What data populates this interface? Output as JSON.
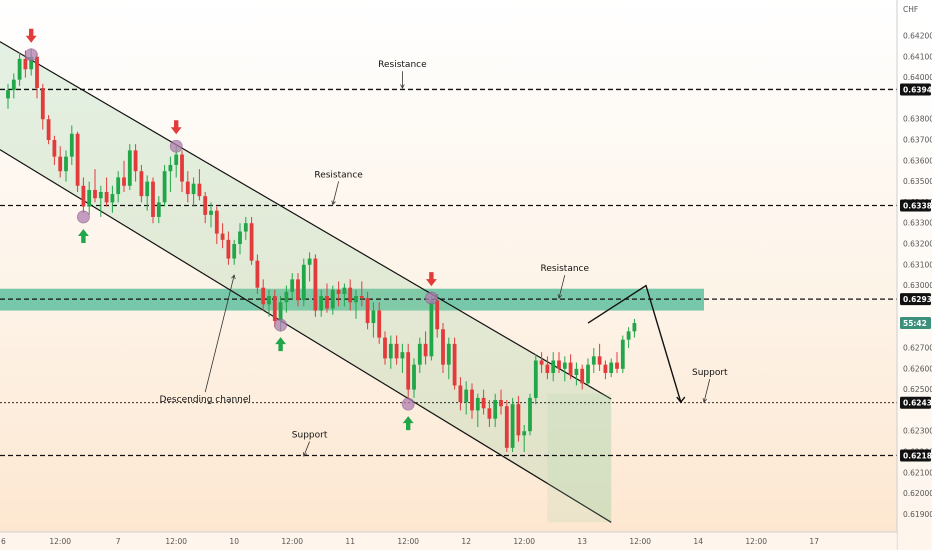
{
  "chart_data": {
    "type": "candlestick",
    "currency": "CHF",
    "y_ticks": [
      "0.64200",
      "0.64100",
      "0.64000",
      "0.63800",
      "0.63700",
      "0.63600",
      "0.63500",
      "0.63400",
      "0.63300",
      "0.63200",
      "0.63100",
      "0.63000",
      "0.62700",
      "0.62600",
      "0.62500",
      "0.62300",
      "0.62200",
      "0.62100",
      "0.62000",
      "0.61900"
    ],
    "y_tick_values": [
      0.642,
      0.641,
      0.64,
      0.638,
      0.637,
      0.636,
      0.635,
      0.634,
      0.633,
      0.632,
      0.631,
      0.63,
      0.627,
      0.626,
      0.625,
      0.623,
      0.622,
      0.621,
      0.62,
      0.619
    ],
    "price_badges": [
      {
        "label": "0.63943",
        "value": 0.63943,
        "style": "level"
      },
      {
        "label": "0.63385",
        "value": 0.63385,
        "style": "level"
      },
      {
        "label": "0.62935",
        "value": 0.62935,
        "style": "level"
      },
      {
        "label": "55:42",
        "value": 0.6282,
        "style": "countdown"
      },
      {
        "label": "0.62437",
        "value": 0.62437,
        "style": "level"
      },
      {
        "label": "0.62183",
        "value": 0.62183,
        "style": "level"
      }
    ],
    "x_ticks": [
      "12:00",
      "7",
      "12:00",
      "10",
      "12:00",
      "11",
      "12:00",
      "12",
      "12:00",
      "13",
      "12:00",
      "14",
      "12:00",
      "17"
    ],
    "x_tick_index": [
      9,
      19,
      29,
      39,
      49,
      59,
      69,
      79,
      89,
      99,
      109,
      119,
      129,
      139
    ],
    "levels": [
      {
        "value": 0.63943,
        "style": "dashed"
      },
      {
        "value": 0.63385,
        "style": "dashed"
      },
      {
        "value": 0.62935,
        "style": "dashed"
      },
      {
        "value": 0.62437,
        "style": "dotted"
      },
      {
        "value": 0.62183,
        "style": "dashed"
      }
    ],
    "zone": {
      "from": 0.6288,
      "to": 0.62985,
      "start_index": 0,
      "end_index": 120,
      "color": "#5fbf9f"
    },
    "annotations": [
      {
        "text": "Resistance",
        "x": 68,
        "y": 0.6405,
        "arrow_to": [
          68,
          0.6395
        ]
      },
      {
        "text": "Resistance",
        "x": 57,
        "y": 0.6352,
        "arrow_to": [
          56,
          0.6339
        ]
      },
      {
        "text": "Resistance",
        "x": 96,
        "y": 0.6307,
        "arrow_to": [
          95,
          0.6294
        ]
      },
      {
        "text": "Descending channel",
        "x": 34,
        "y": 0.6244,
        "arrow_to": [
          39,
          0.6305
        ]
      },
      {
        "text": "Support",
        "x": 52,
        "y": 0.6227,
        "arrow_to": [
          51,
          0.6218
        ]
      },
      {
        "text": "Support",
        "x": 121,
        "y": 0.6257,
        "arrow_to": [
          120,
          0.6244
        ]
      }
    ],
    "channel": {
      "upper": [
        [
          0,
          0.6415
        ],
        [
          100,
          0.6252
        ]
      ],
      "lower": [
        [
          0,
          0.6363
        ],
        [
          100,
          0.6193
        ]
      ]
    },
    "pivots": [
      {
        "index": 4,
        "value": 0.6411,
        "type": "top"
      },
      {
        "index": 13,
        "value": 0.6333,
        "type": "bottom"
      },
      {
        "index": 29,
        "value": 0.6367,
        "type": "top"
      },
      {
        "index": 47,
        "value": 0.6281,
        "type": "bottom"
      },
      {
        "index": 73,
        "value": 0.6294,
        "type": "top"
      },
      {
        "index": 69,
        "value": 0.6243,
        "type": "bottom"
      }
    ],
    "projection": [
      [
        100,
        0.6282
      ],
      [
        110,
        0.63
      ],
      [
        116,
        0.6244
      ]
    ],
    "candles": [
      [
        0.639,
        0.6397,
        0.6385,
        0.6394
      ],
      [
        0.6394,
        0.6402,
        0.639,
        0.6399
      ],
      [
        0.6399,
        0.6412,
        0.6396,
        0.6409
      ],
      [
        0.6409,
        0.6413,
        0.64,
        0.6404
      ],
      [
        0.6404,
        0.6414,
        0.6401,
        0.641
      ],
      [
        0.641,
        0.6412,
        0.639,
        0.6395
      ],
      [
        0.6395,
        0.6397,
        0.6375,
        0.638
      ],
      [
        0.638,
        0.6382,
        0.6368,
        0.637
      ],
      [
        0.637,
        0.6372,
        0.6358,
        0.6362
      ],
      [
        0.6362,
        0.6367,
        0.6352,
        0.6355
      ],
      [
        0.6355,
        0.6365,
        0.635,
        0.6362
      ],
      [
        0.6362,
        0.6377,
        0.6358,
        0.6373
      ],
      [
        0.6373,
        0.6374,
        0.6345,
        0.6348
      ],
      [
        0.6348,
        0.6352,
        0.6335,
        0.6338
      ],
      [
        0.6338,
        0.635,
        0.6334,
        0.6346
      ],
      [
        0.6346,
        0.6356,
        0.634,
        0.6342
      ],
      [
        0.6342,
        0.6348,
        0.6333,
        0.6345
      ],
      [
        0.6345,
        0.6352,
        0.6338,
        0.634
      ],
      [
        0.634,
        0.6348,
        0.6335,
        0.6344
      ],
      [
        0.6344,
        0.6355,
        0.634,
        0.6352
      ],
      [
        0.6352,
        0.636,
        0.6345,
        0.6348
      ],
      [
        0.6348,
        0.6368,
        0.6346,
        0.6365
      ],
      [
        0.6365,
        0.6368,
        0.635,
        0.6355
      ],
      [
        0.6355,
        0.6358,
        0.634,
        0.6343
      ],
      [
        0.6343,
        0.6353,
        0.6336,
        0.635
      ],
      [
        0.635,
        0.6352,
        0.633,
        0.6333
      ],
      [
        0.6333,
        0.6343,
        0.633,
        0.634
      ],
      [
        0.634,
        0.6358,
        0.6338,
        0.6355
      ],
      [
        0.6355,
        0.6362,
        0.6345,
        0.6358
      ],
      [
        0.6358,
        0.6367,
        0.6352,
        0.6363
      ],
      [
        0.6363,
        0.6365,
        0.6345,
        0.635
      ],
      [
        0.635,
        0.6355,
        0.634,
        0.6344
      ],
      [
        0.6344,
        0.6352,
        0.6338,
        0.6349
      ],
      [
        0.6349,
        0.6356,
        0.6341,
        0.6343
      ],
      [
        0.6343,
        0.6345,
        0.633,
        0.6334
      ],
      [
        0.6334,
        0.634,
        0.6328,
        0.6336
      ],
      [
        0.6336,
        0.6338,
        0.632,
        0.6325
      ],
      [
        0.6325,
        0.633,
        0.6318,
        0.6322
      ],
      [
        0.6322,
        0.6326,
        0.631,
        0.6313
      ],
      [
        0.6313,
        0.6322,
        0.631,
        0.632
      ],
      [
        0.632,
        0.633,
        0.6315,
        0.6326
      ],
      [
        0.6326,
        0.6333,
        0.6322,
        0.633
      ],
      [
        0.633,
        0.6333,
        0.631,
        0.6312
      ],
      [
        0.6312,
        0.6315,
        0.6296,
        0.6299
      ],
      [
        0.6299,
        0.6303,
        0.6288,
        0.6291
      ],
      [
        0.6291,
        0.6298,
        0.6285,
        0.6295
      ],
      [
        0.6295,
        0.6298,
        0.628,
        0.6283
      ],
      [
        0.6283,
        0.6295,
        0.6278,
        0.6292
      ],
      [
        0.6292,
        0.63,
        0.6287,
        0.6297
      ],
      [
        0.6297,
        0.6306,
        0.6293,
        0.6303
      ],
      [
        0.6303,
        0.6306,
        0.629,
        0.6293
      ],
      [
        0.6293,
        0.6313,
        0.629,
        0.631
      ],
      [
        0.631,
        0.6316,
        0.6302,
        0.6313
      ],
      [
        0.6313,
        0.6315,
        0.6285,
        0.6288
      ],
      [
        0.6288,
        0.6298,
        0.6285,
        0.6295
      ],
      [
        0.6295,
        0.6301,
        0.6287,
        0.6289
      ],
      [
        0.6289,
        0.63,
        0.6286,
        0.6298
      ],
      [
        0.6298,
        0.6302,
        0.629,
        0.6296
      ],
      [
        0.6296,
        0.6301,
        0.629,
        0.6299
      ],
      [
        0.6299,
        0.6303,
        0.6288,
        0.6292
      ],
      [
        0.6292,
        0.6298,
        0.6284,
        0.6295
      ],
      [
        0.6295,
        0.6302,
        0.629,
        0.6294
      ],
      [
        0.6294,
        0.6297,
        0.6279,
        0.6282
      ],
      [
        0.6282,
        0.6292,
        0.6275,
        0.6288
      ],
      [
        0.6288,
        0.6292,
        0.6272,
        0.6275
      ],
      [
        0.6275,
        0.6278,
        0.6262,
        0.6265
      ],
      [
        0.6265,
        0.6276,
        0.626,
        0.6272
      ],
      [
        0.6272,
        0.6276,
        0.6262,
        0.6265
      ],
      [
        0.6265,
        0.6272,
        0.6258,
        0.6268
      ],
      [
        0.6268,
        0.6272,
        0.6246,
        0.625
      ],
      [
        0.625,
        0.6265,
        0.6246,
        0.6262
      ],
      [
        0.6262,
        0.6275,
        0.6258,
        0.6272
      ],
      [
        0.6272,
        0.6278,
        0.6262,
        0.6266
      ],
      [
        0.6266,
        0.6295,
        0.6264,
        0.6293
      ],
      [
        0.6293,
        0.6296,
        0.6275,
        0.6279
      ],
      [
        0.6279,
        0.6282,
        0.6258,
        0.6262
      ],
      [
        0.6262,
        0.6275,
        0.6255,
        0.6272
      ],
      [
        0.6272,
        0.6275,
        0.625,
        0.6252
      ],
      [
        0.6252,
        0.6256,
        0.624,
        0.6244
      ],
      [
        0.6244,
        0.6254,
        0.6238,
        0.625
      ],
      [
        0.625,
        0.6253,
        0.6236,
        0.624
      ],
      [
        0.624,
        0.6248,
        0.6232,
        0.6246
      ],
      [
        0.6246,
        0.625,
        0.6238,
        0.6241
      ],
      [
        0.6241,
        0.6245,
        0.6232,
        0.6236
      ],
      [
        0.6236,
        0.6248,
        0.6232,
        0.6245
      ],
      [
        0.6245,
        0.625,
        0.6238,
        0.6242
      ],
      [
        0.6242,
        0.6245,
        0.622,
        0.6222
      ],
      [
        0.6222,
        0.6246,
        0.622,
        0.6243
      ],
      [
        0.6243,
        0.6247,
        0.6225,
        0.6228
      ],
      [
        0.6228,
        0.6233,
        0.622,
        0.623
      ],
      [
        0.623,
        0.6248,
        0.6228,
        0.6246
      ],
      [
        0.6246,
        0.6267,
        0.6243,
        0.6264
      ],
      [
        0.6264,
        0.6268,
        0.6258,
        0.6262
      ],
      [
        0.6262,
        0.6266,
        0.6255,
        0.6258
      ],
      [
        0.6258,
        0.6268,
        0.6254,
        0.6264
      ],
      [
        0.6264,
        0.6268,
        0.6258,
        0.626
      ],
      [
        0.626,
        0.6266,
        0.6254,
        0.6263
      ],
      [
        0.6263,
        0.6267,
        0.6255,
        0.6257
      ],
      [
        0.6257,
        0.6263,
        0.6252,
        0.626
      ],
      [
        0.626,
        0.6262,
        0.625,
        0.6253
      ],
      [
        0.6253,
        0.6265,
        0.6252,
        0.6262
      ],
      [
        0.6262,
        0.627,
        0.6258,
        0.6266
      ],
      [
        0.6266,
        0.6272,
        0.6259,
        0.6262
      ],
      [
        0.6262,
        0.6264,
        0.6255,
        0.6258
      ],
      [
        0.6258,
        0.6265,
        0.6256,
        0.6263
      ],
      [
        0.6263,
        0.6268,
        0.6258,
        0.626
      ],
      [
        0.626,
        0.6276,
        0.6258,
        0.6274
      ],
      [
        0.6274,
        0.628,
        0.627,
        0.6278
      ],
      [
        0.6278,
        0.6284,
        0.6275,
        0.6282
      ]
    ]
  }
}
